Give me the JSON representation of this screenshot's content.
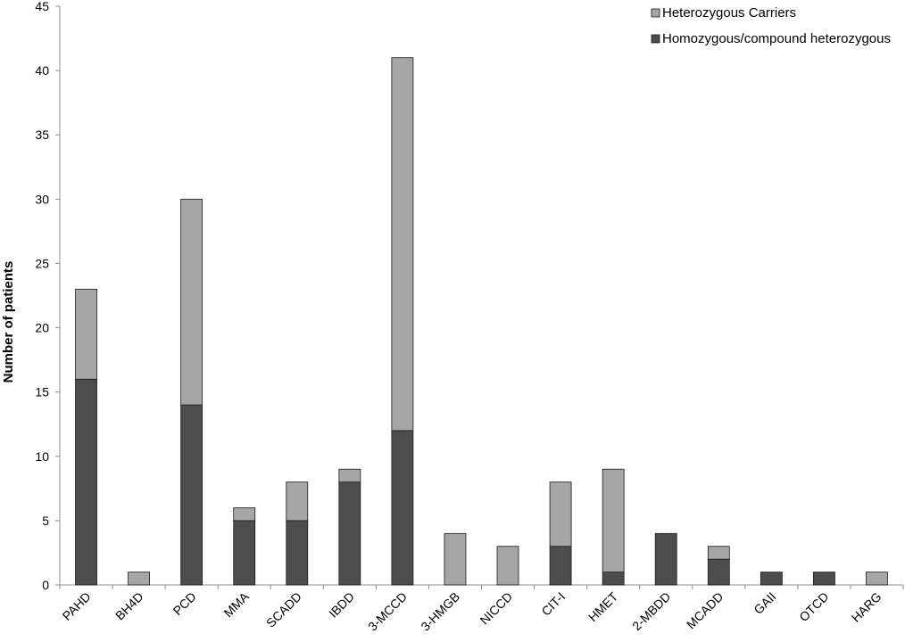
{
  "chart_data": {
    "type": "bar",
    "stacked": true,
    "ylabel": "Number of patients",
    "xlabel": "",
    "ylim": [
      0,
      45
    ],
    "yticks": [
      "0",
      "5",
      "10",
      "15",
      "20",
      "25",
      "30",
      "35",
      "40",
      "45"
    ],
    "grid": false,
    "legend_position": "top-right",
    "categories": [
      "PAHD",
      "BH4D",
      "PCD",
      "MMA",
      "SCADD",
      "IBDD",
      "3-MCCD",
      "3-HMGB",
      "NICCD",
      "CIT-I",
      "HMET",
      "2-MBDD",
      "MCADD",
      "GAII",
      "OTCD",
      "HARG"
    ],
    "series": [
      {
        "name": "Homozygous/compound heterozygous",
        "color": "#4d4d4d",
        "values": [
          16,
          0,
          14,
          5,
          5,
          8,
          12,
          0,
          0,
          3,
          1,
          4,
          2,
          1,
          1,
          0
        ]
      },
      {
        "name": "Heterozygous Carriers",
        "color": "#a6a6a6",
        "values": [
          7,
          1,
          16,
          1,
          3,
          1,
          29,
          4,
          3,
          5,
          8,
          0,
          1,
          0,
          0,
          1
        ]
      }
    ],
    "legend_order": [
      "Heterozygous Carriers",
      "Homozygous/compound heterozygous"
    ]
  }
}
